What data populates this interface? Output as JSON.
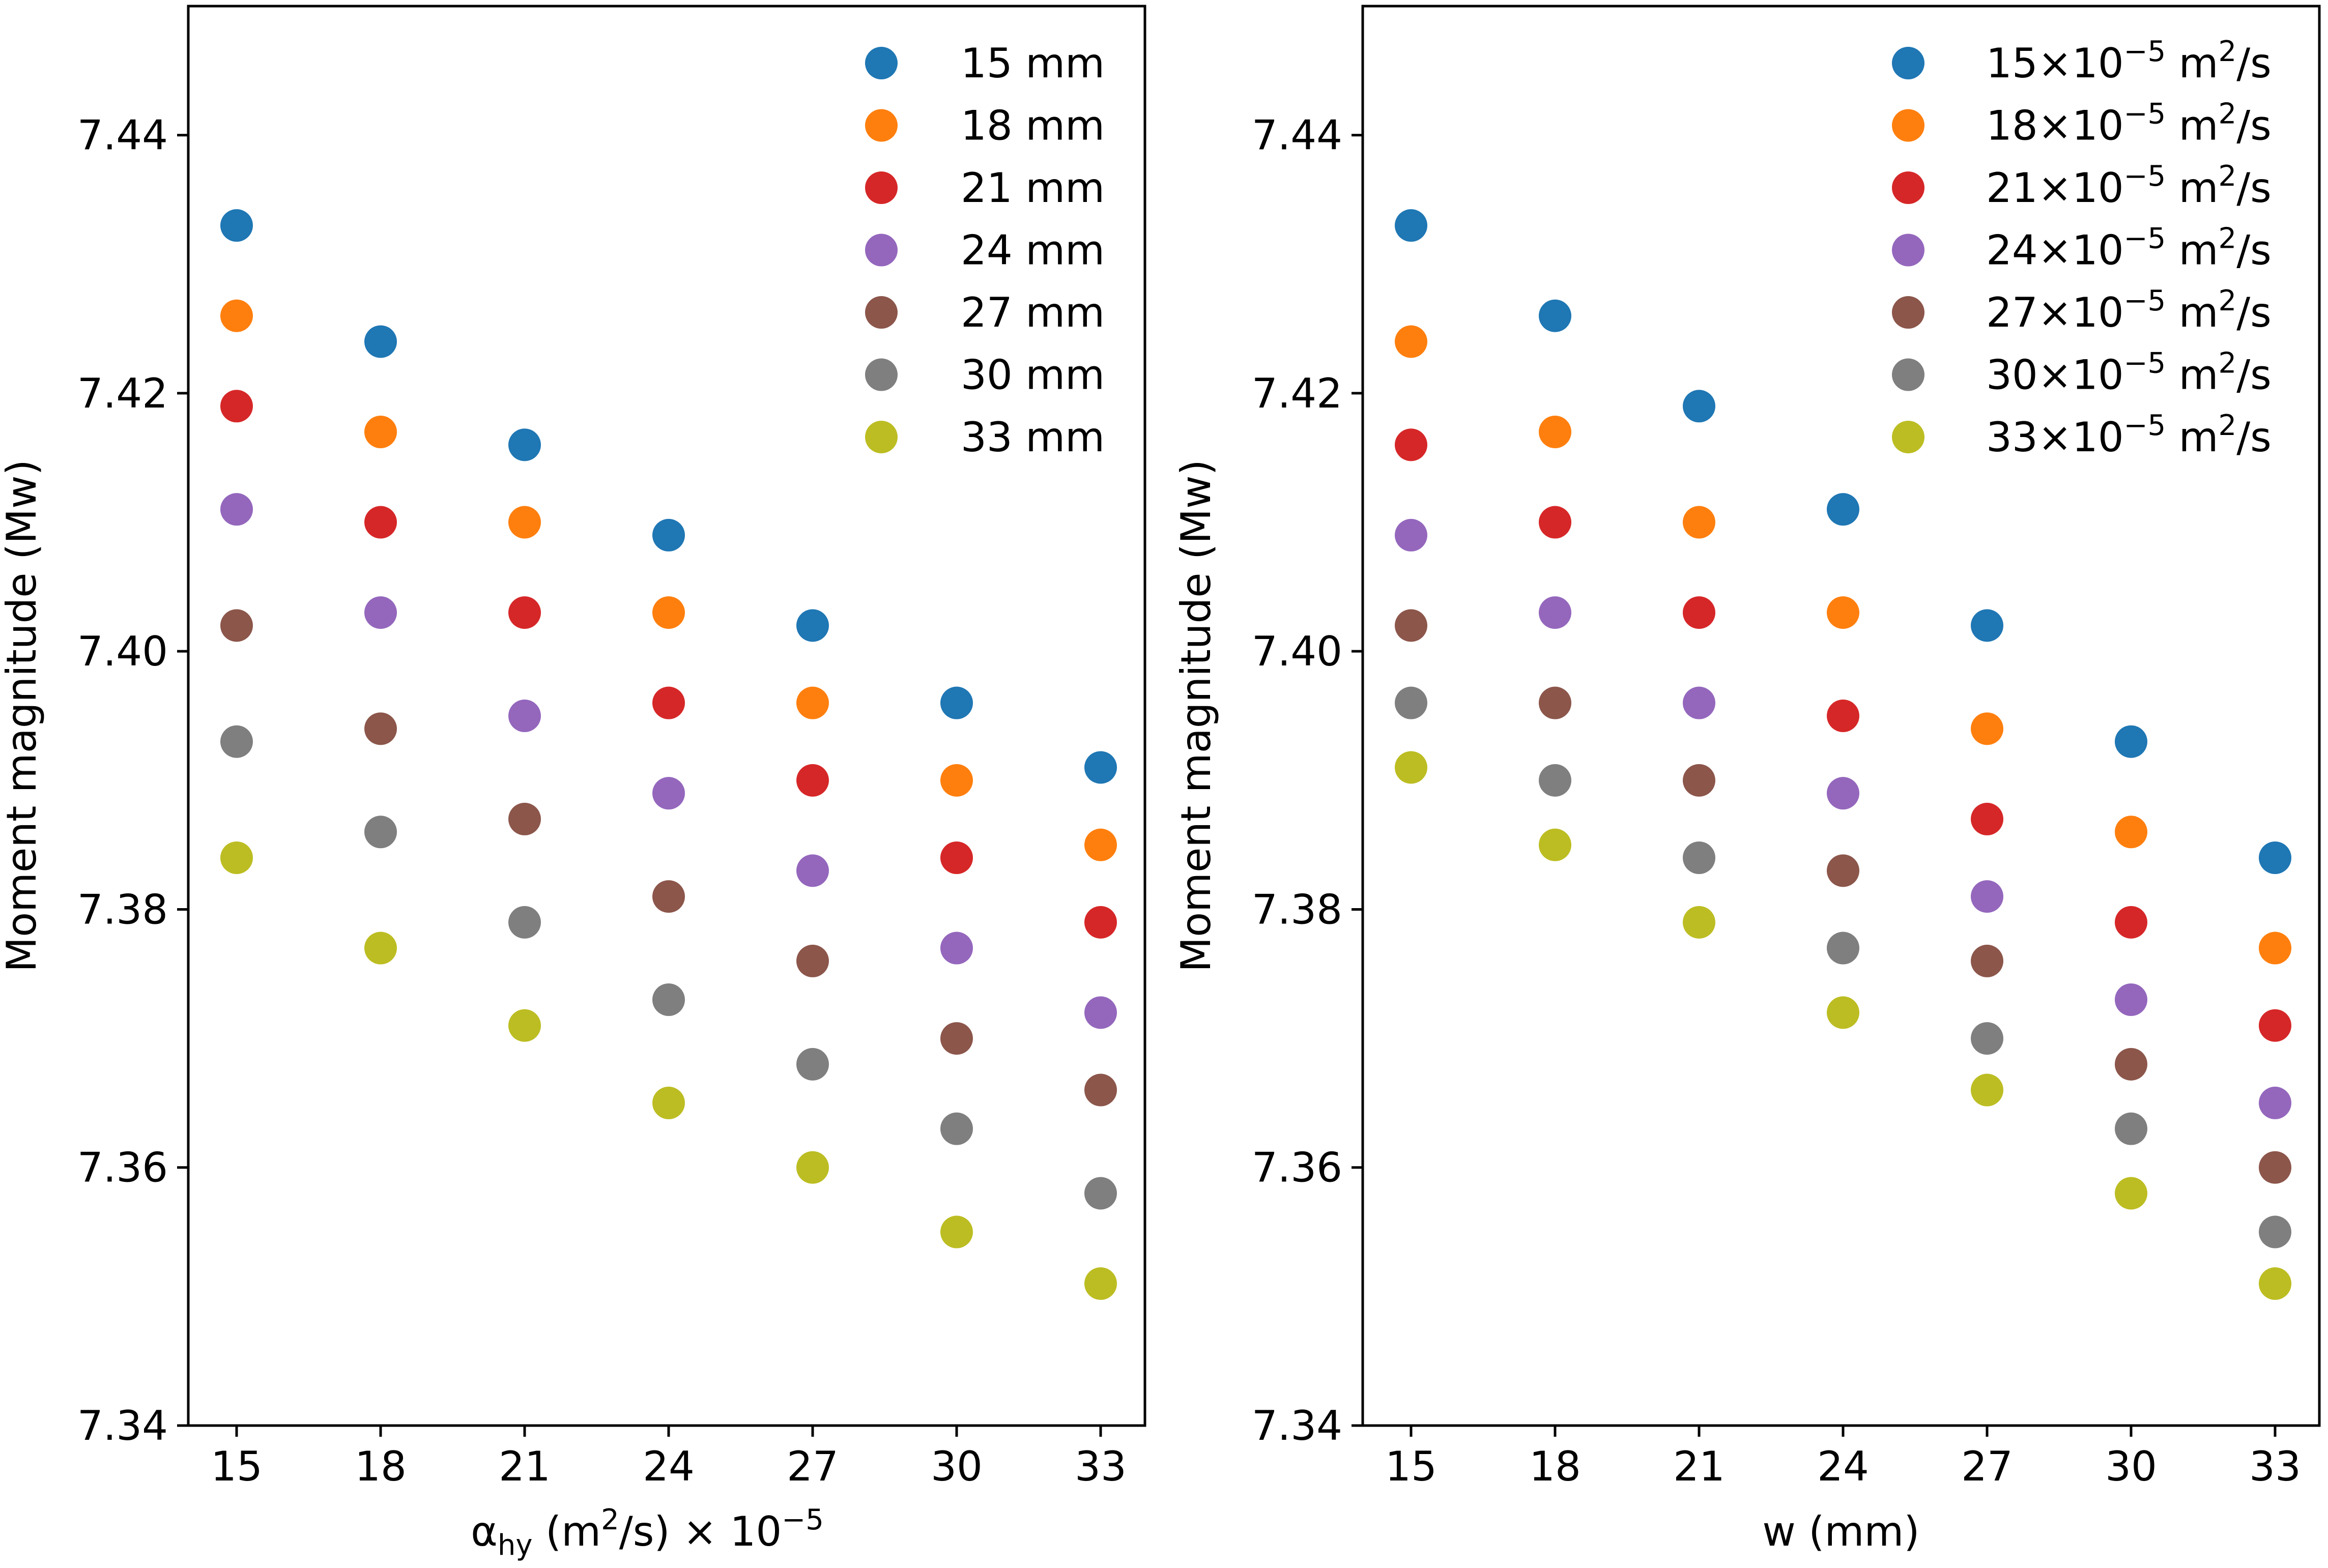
{
  "chart_data": [
    {
      "type": "scatter",
      "xlabel": {
        "pre": "α",
        "sub": "hy",
        "mid": " (m",
        "sup": "2",
        "post": "/s)  × 10",
        "exp": "−5"
      },
      "ylabel": "Moment magnitude (Mw)",
      "x_ticks": [
        "15",
        "18",
        "21",
        "24",
        "27",
        "30",
        "33"
      ],
      "x_values": [
        15,
        18,
        21,
        24,
        27,
        30,
        33
      ],
      "y_ticks": [
        "7.34",
        "7.36",
        "7.38",
        "7.40",
        "7.42",
        "7.44"
      ],
      "ylim": [
        7.34,
        7.45
      ],
      "legend_position": "top-right",
      "series": [
        {
          "name": "15 mm",
          "color": "#1f77b4",
          "values": [
            7.433,
            7.424,
            7.416,
            7.409,
            7.402,
            7.396,
            7.391
          ]
        },
        {
          "name": "18 mm",
          "color": "#ff7f0e",
          "values": [
            7.426,
            7.417,
            7.41,
            7.403,
            7.396,
            7.39,
            7.385
          ]
        },
        {
          "name": "21 mm",
          "color": "#d62728",
          "values": [
            7.419,
            7.41,
            7.403,
            7.396,
            7.39,
            7.384,
            7.379
          ]
        },
        {
          "name": "24 mm",
          "color": "#9467bd",
          "values": [
            7.411,
            7.403,
            7.395,
            7.389,
            7.383,
            7.377,
            7.372
          ]
        },
        {
          "name": "27 mm",
          "color": "#8c564b",
          "values": [
            7.402,
            7.394,
            7.387,
            7.381,
            7.376,
            7.37,
            7.366
          ]
        },
        {
          "name": "30 mm",
          "color": "#7f7f7f",
          "values": [
            7.393,
            7.386,
            7.379,
            7.373,
            7.368,
            7.363,
            7.358
          ]
        },
        {
          "name": "33 mm",
          "color": "#bcbd22",
          "values": [
            7.384,
            7.377,
            7.371,
            7.365,
            7.36,
            7.355,
            7.351
          ]
        }
      ]
    },
    {
      "type": "scatter",
      "xlabel": "w (mm)",
      "ylabel": "Moment magnitude (Mw)",
      "x_ticks": [
        "15",
        "18",
        "21",
        "24",
        "27",
        "30",
        "33"
      ],
      "x_values": [
        15,
        18,
        21,
        24,
        27,
        30,
        33
      ],
      "y_ticks": [
        "7.34",
        "7.36",
        "7.38",
        "7.40",
        "7.42",
        "7.44"
      ],
      "ylim": [
        7.34,
        7.45
      ],
      "legend_position": "top-right",
      "series": [
        {
          "name": "15×10",
          "exp": "−5",
          "unit": " m",
          "unit_sup": "2",
          "unit_post": "/s",
          "color": "#1f77b4",
          "values": [
            7.433,
            7.426,
            7.419,
            7.411,
            7.402,
            7.393,
            7.384
          ]
        },
        {
          "name": "18×10",
          "exp": "−5",
          "unit": " m",
          "unit_sup": "2",
          "unit_post": "/s",
          "color": "#ff7f0e",
          "values": [
            7.424,
            7.417,
            7.41,
            7.403,
            7.394,
            7.386,
            7.377
          ]
        },
        {
          "name": "21×10",
          "exp": "−5",
          "unit": " m",
          "unit_sup": "2",
          "unit_post": "/s",
          "color": "#d62728",
          "values": [
            7.416,
            7.41,
            7.403,
            7.395,
            7.387,
            7.379,
            7.371
          ]
        },
        {
          "name": "24×10",
          "exp": "−5",
          "unit": " m",
          "unit_sup": "2",
          "unit_post": "/s",
          "color": "#9467bd",
          "values": [
            7.409,
            7.403,
            7.396,
            7.389,
            7.381,
            7.373,
            7.365
          ]
        },
        {
          "name": "27×10",
          "exp": "−5",
          "unit": " m",
          "unit_sup": "2",
          "unit_post": "/s",
          "color": "#8c564b",
          "values": [
            7.402,
            7.396,
            7.39,
            7.383,
            7.376,
            7.368,
            7.36
          ]
        },
        {
          "name": "30×10",
          "exp": "−5",
          "unit": " m",
          "unit_sup": "2",
          "unit_post": "/s",
          "color": "#7f7f7f",
          "values": [
            7.396,
            7.39,
            7.384,
            7.377,
            7.37,
            7.363,
            7.355
          ]
        },
        {
          "name": "33×10",
          "exp": "−5",
          "unit": " m",
          "unit_sup": "2",
          "unit_post": "/s",
          "color": "#bcbd22",
          "values": [
            7.391,
            7.385,
            7.379,
            7.372,
            7.366,
            7.358,
            7.351
          ]
        }
      ]
    }
  ]
}
